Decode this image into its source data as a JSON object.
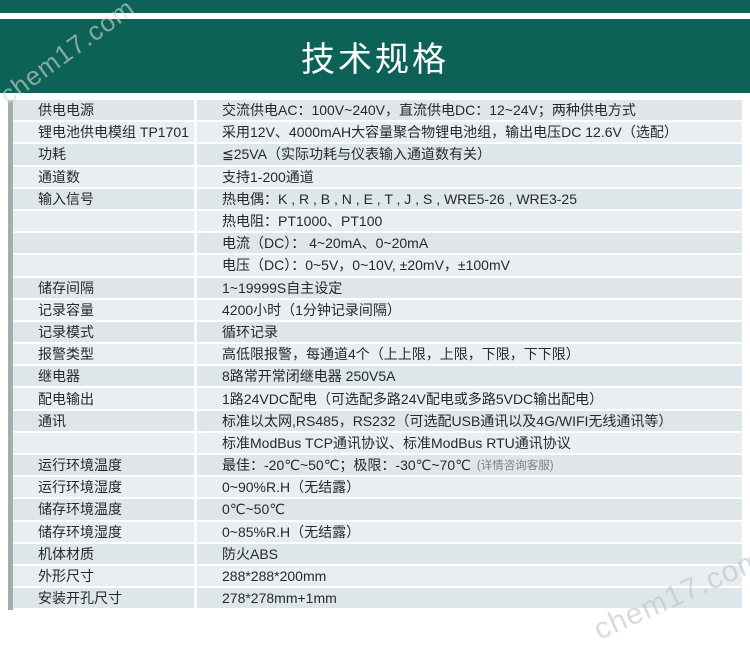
{
  "header": {
    "title": "技术规格"
  },
  "watermarks": [
    "chem17.com",
    "chem17.com"
  ],
  "colors": {
    "banner": "#0c6257",
    "row_odd": "#dfe6ea",
    "row_even": "#e9eef1",
    "separator": "#ffffff",
    "text": "#26292c"
  },
  "table": {
    "rows": [
      {
        "label": "供电电源",
        "value": "交流供电AC：100V~240V，直流供电DC：12~24V；两种供电方式"
      },
      {
        "label": "锂电池供电模组 TP1701",
        "value": "采用12V、4000mAH大容量聚合物锂电池组，输出电压DC 12.6V（选配）"
      },
      {
        "label": "功耗",
        "value": "≦25VA（实际功耗与仪表输入通道数有关）"
      },
      {
        "label": "通道数",
        "value": "支持1-200通道"
      },
      {
        "label": "输入信号",
        "value": "热电偶：K , R , B , N , E , T , J , S , WRE5-26 , WRE3-25"
      },
      {
        "label": "",
        "value": "热电阻：PT1000、PT100"
      },
      {
        "label": "",
        "value": "电流（DC）： 4~20mA、0~20mA"
      },
      {
        "label": "",
        "value": "电压（DC）：0~5V，0~10V, ±20mV，±100mV"
      },
      {
        "label": "储存间隔",
        "value": "1~19999S自主设定"
      },
      {
        "label": "记录容量",
        "value": "4200小时（1分钟记录间隔）"
      },
      {
        "label": "记录模式",
        "value": "循环记录"
      },
      {
        "label": "报警类型",
        "value": "高低限报警，每通道4个（上上限，上限，下限，下下限）"
      },
      {
        "label": "继电器",
        "value": "8路常开常闭继电器 250V5A"
      },
      {
        "label": "配电输出",
        "value": "1路24VDC配电（可选配多路24V配电或多路5VDC输出配电）"
      },
      {
        "label": "通讯",
        "value": "标准以太网,RS485，RS232（可选配USB通讯以及4G/WIFI无线通讯等）"
      },
      {
        "label": "",
        "value": "标准ModBus TCP通讯协议、标准ModBus RTU通讯协议"
      },
      {
        "label": "运行环境温度",
        "value": "最佳：-20℃~50℃；极限：-30℃~70℃",
        "note": "(详情咨询客服)"
      },
      {
        "label": "运行环境湿度",
        "value": "0~90%R.H（无结露）"
      },
      {
        "label": "储存环境温度",
        "value": "0℃~50℃"
      },
      {
        "label": "储存环境湿度",
        "value": "0~85%R.H（无结露）"
      },
      {
        "label": "机体材质",
        "value": "防火ABS"
      },
      {
        "label": "外形尺寸",
        "value": "288*288*200mm"
      },
      {
        "label": "安装开孔尺寸",
        "value": "278*278mm+1mm"
      }
    ]
  }
}
